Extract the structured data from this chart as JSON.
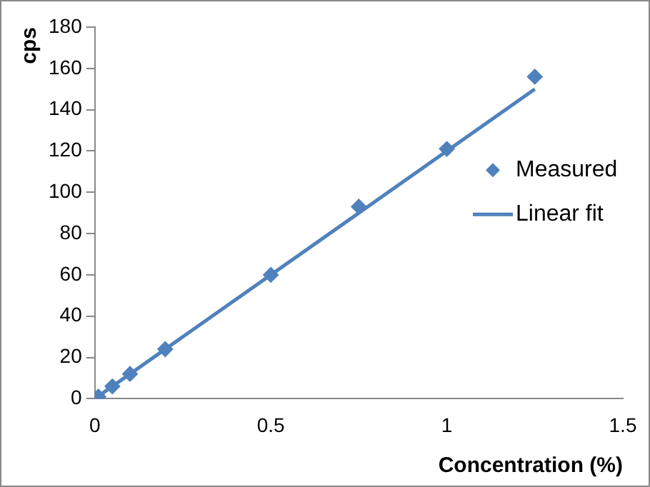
{
  "chart_data": {
    "type": "scatter",
    "xlabel": "Concentration (%)",
    "ylabel": "cps",
    "xlim": [
      0,
      1.5
    ],
    "xticks": [
      0,
      0.5,
      1,
      1.5
    ],
    "ylim": [
      0,
      180
    ],
    "yticks": [
      0,
      20,
      40,
      60,
      80,
      100,
      120,
      140,
      160,
      180
    ],
    "grid": false,
    "legend": "right",
    "marker": "diamond",
    "series": [
      {
        "name": "Measured",
        "color": "#4f81bd",
        "x": [
          0.01,
          0.05,
          0.1,
          0.2,
          0.5,
          0.75,
          1,
          1.25
        ],
        "values": [
          1,
          6,
          12,
          24,
          60,
          93,
          121,
          156
        ]
      },
      {
        "name": "Linear fit",
        "type": "line",
        "color": "#4f81bd",
        "x": [
          0,
          1.25
        ],
        "values": [
          0,
          150
        ],
        "marker": "none",
        "line_style": "solid"
      }
    ]
  }
}
